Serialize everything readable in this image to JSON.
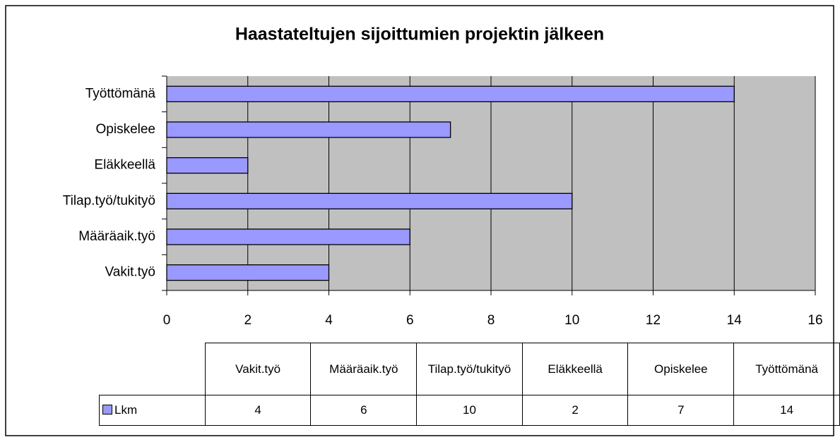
{
  "chart_data": {
    "type": "bar",
    "orientation": "horizontal",
    "title": "Haastateltujen sijoittumien projektin jälkeen",
    "categories": [
      "Vakit.työ",
      "Määräaik.työ",
      "Tilap.työ/tukityö",
      "Eläkkeellä",
      "Opiskelee",
      "Työttömänä"
    ],
    "series": [
      {
        "name": "Lkm",
        "color": "#9999ff",
        "values": [
          4,
          6,
          10,
          2,
          7,
          14
        ]
      }
    ],
    "xlim": [
      0,
      16
    ],
    "xticks": [
      0,
      2,
      4,
      6,
      8,
      10,
      12,
      14,
      16
    ],
    "grid": true,
    "data_table": true
  }
}
